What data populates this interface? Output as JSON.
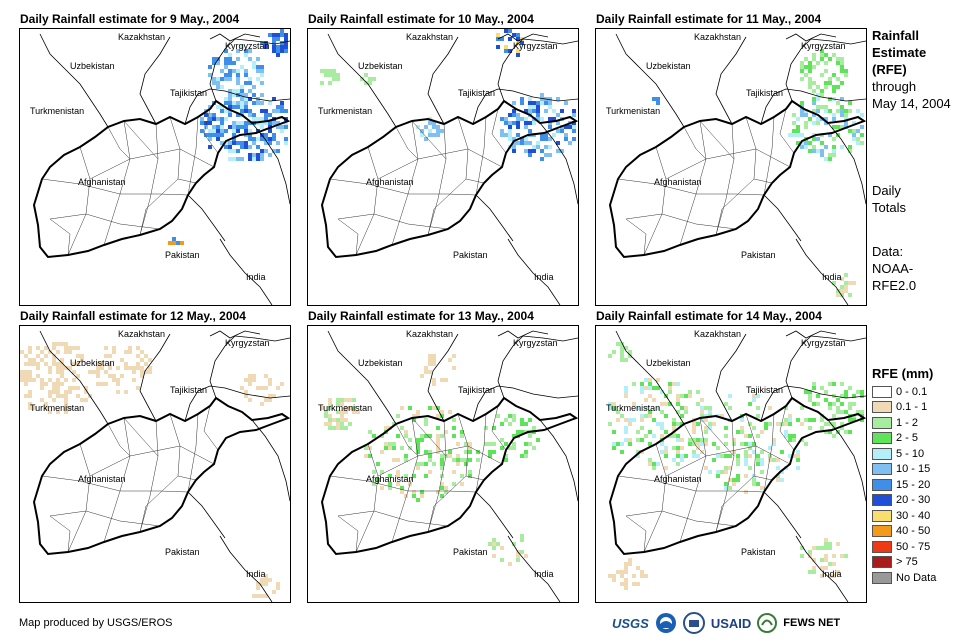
{
  "panels": [
    {
      "title": "Daily Rainfall estimate for 9 May., 2004",
      "seed": 9,
      "rain": "east-heavy"
    },
    {
      "title": "Daily Rainfall estimate for 10 May., 2004",
      "seed": 10,
      "rain": "east-medium"
    },
    {
      "title": "Daily Rainfall estimate for 11 May., 2004",
      "seed": 11,
      "rain": "east-light"
    },
    {
      "title": "Daily Rainfall estimate for 12 May., 2004",
      "seed": 12,
      "rain": "west-light"
    },
    {
      "title": "Daily Rainfall estimate for 13 May., 2004",
      "seed": 13,
      "rain": "central-light"
    },
    {
      "title": "Daily Rainfall estimate for 14 May., 2004",
      "seed": 14,
      "rain": "widespread"
    }
  ],
  "place_labels": {
    "kazakhstan": "Kazakhstan",
    "kyrgyzstan": "Kyrgyzstan",
    "uzbekistan": "Uzbekistan",
    "tajikistan": "Tajikistan",
    "turkmenistan": "Turkmenistan",
    "afghanistan": "Afghanistan",
    "pakistan": "Pakistan",
    "india": "India"
  },
  "side_info": {
    "title_line1": "Rainfall",
    "title_line2": "Estimate",
    "title_line3": "(RFE)",
    "through": "through",
    "date": "May 14, 2004",
    "daily1": "Daily",
    "daily2": "Totals",
    "data1": "Data:",
    "data2": "NOAA-",
    "data3": "RFE2.0"
  },
  "legend": {
    "title": "RFE (mm)",
    "items": [
      {
        "label": "0 - 0.1",
        "color": "#ffffff"
      },
      {
        "label": "0.1 - 1",
        "color": "#f0d9b5"
      },
      {
        "label": "1 - 2",
        "color": "#a8eca0"
      },
      {
        "label": "2 - 5",
        "color": "#5ee35a"
      },
      {
        "label": "5 - 10",
        "color": "#b4eef8"
      },
      {
        "label": "10 - 15",
        "color": "#7fbff2"
      },
      {
        "label": "15 - 20",
        "color": "#3f8fe8"
      },
      {
        "label": "20 - 30",
        "color": "#1f4fd6"
      },
      {
        "label": "30 - 40",
        "color": "#f8de70"
      },
      {
        "label": "40 - 50",
        "color": "#f49a1a"
      },
      {
        "label": "50 - 75",
        "color": "#ee3a14"
      },
      {
        "label": "> 75",
        "color": "#a81c1c"
      },
      {
        "label": "No Data",
        "color": "#999999"
      }
    ]
  },
  "footer": "Map produced by USGS/EROS",
  "logos": {
    "usgs": "USGS",
    "usaid": "USAID",
    "fews": "FEWS NET"
  }
}
